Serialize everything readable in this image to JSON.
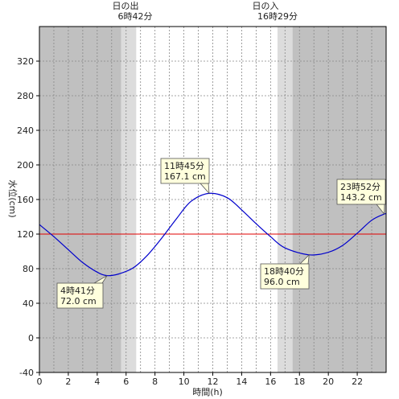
{
  "chart_data": {
    "type": "line",
    "xlabel": "時間(h)",
    "ylabel": "水位(cm)",
    "xlim": [
      0,
      24
    ],
    "ylim": [
      -40,
      360
    ],
    "x_ticks": [
      0,
      2,
      4,
      6,
      8,
      10,
      12,
      14,
      16,
      18,
      20,
      22
    ],
    "y_ticks": [
      -40,
      0,
      40,
      80,
      120,
      160,
      200,
      240,
      280,
      320
    ],
    "grid": true,
    "reference_line": {
      "value": 120,
      "color": "#e00000"
    },
    "sunrise": {
      "label_title": "日の出",
      "label_time": "6時42分",
      "hour": 6.7
    },
    "sunset": {
      "label_title": "日の入",
      "label_time": "16時29分",
      "hour": 16.48
    },
    "series": [
      {
        "color": "#0000cc",
        "x": [
          0,
          1,
          2,
          3,
          4,
          4.683,
          5.5,
          6.5,
          7.5,
          8.5,
          9.5,
          10.5,
          11.75,
          13,
          14,
          15,
          16,
          17,
          18.667,
          20,
          21,
          22,
          23,
          23.867,
          24
        ],
        "y": [
          131,
          117,
          102,
          87,
          76,
          72,
          74,
          81,
          96,
          116,
          138,
          158,
          167.1,
          162,
          148,
          132,
          117,
          104,
          96,
          99,
          107,
          121,
          136,
          143.2,
          143
        ]
      }
    ],
    "annotations": [
      {
        "time": "4時41分",
        "value": "72.0 cm",
        "hour": 4.683,
        "level": 72.0
      },
      {
        "time": "11時45分",
        "value": "167.1 cm",
        "hour": 11.75,
        "level": 167.1
      },
      {
        "time": "18時40分",
        "value": "96.0 cm",
        "hour": 18.667,
        "level": 96.0
      },
      {
        "time": "23時52分",
        "value": "143.2 cm",
        "hour": 23.867,
        "level": 143.2
      }
    ],
    "colors": {
      "night": "#c0c0c0",
      "twilight": "#dcdcdc",
      "day": "#ffffff",
      "callout": "#ffffdd"
    }
  }
}
